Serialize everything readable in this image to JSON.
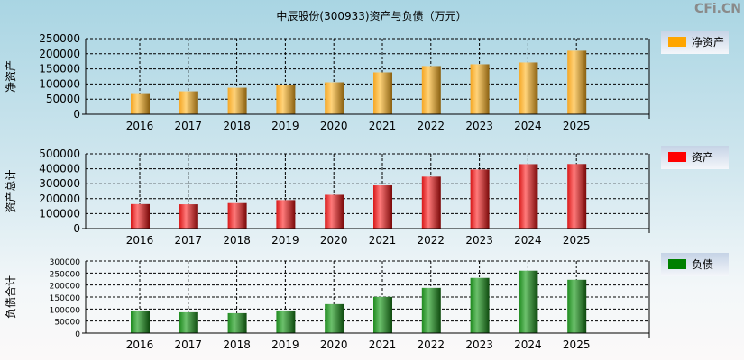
{
  "title": "中辰股份(300933)资产与负债（万元）",
  "watermark": "CFi.CN",
  "chart_data": [
    {
      "type": "bar",
      "ylabel": "净资产",
      "legend": "净资产",
      "color": "#ffa500",
      "ylim": [
        0,
        250000
      ],
      "yticks": [
        0,
        50000,
        100000,
        150000,
        200000,
        250000
      ],
      "categories": [
        "2016",
        "2017",
        "2018",
        "2019",
        "2020",
        "2021",
        "2022",
        "2023",
        "2024",
        "2025"
      ],
      "values": [
        69700,
        75700,
        87600,
        96600,
        105600,
        138400,
        159400,
        165300,
        171300,
        210100
      ]
    },
    {
      "type": "bar",
      "ylabel": "资产总计",
      "legend": "资产",
      "color": "#ff0000",
      "ylim": [
        0,
        500000
      ],
      "yticks": [
        0,
        100000,
        200000,
        300000,
        400000,
        500000
      ],
      "categories": [
        "2016",
        "2017",
        "2018",
        "2019",
        "2020",
        "2021",
        "2022",
        "2023",
        "2024",
        "2025"
      ],
      "values": [
        163700,
        162300,
        170400,
        190600,
        226100,
        289000,
        347400,
        395000,
        431100,
        432100
      ]
    },
    {
      "type": "bar",
      "ylabel": "负债合计",
      "legend": "负债",
      "color": "#008000",
      "ylim": [
        0,
        300000
      ],
      "yticks": [
        0,
        50000,
        100000,
        150000,
        200000,
        250000,
        300000
      ],
      "categories": [
        "2016",
        "2017",
        "2018",
        "2019",
        "2020",
        "2021",
        "2022",
        "2023",
        "2024",
        "2025"
      ],
      "values": [
        94000,
        86600,
        82800,
        94000,
        120500,
        150600,
        188000,
        229700,
        259800,
        222000
      ]
    }
  ]
}
